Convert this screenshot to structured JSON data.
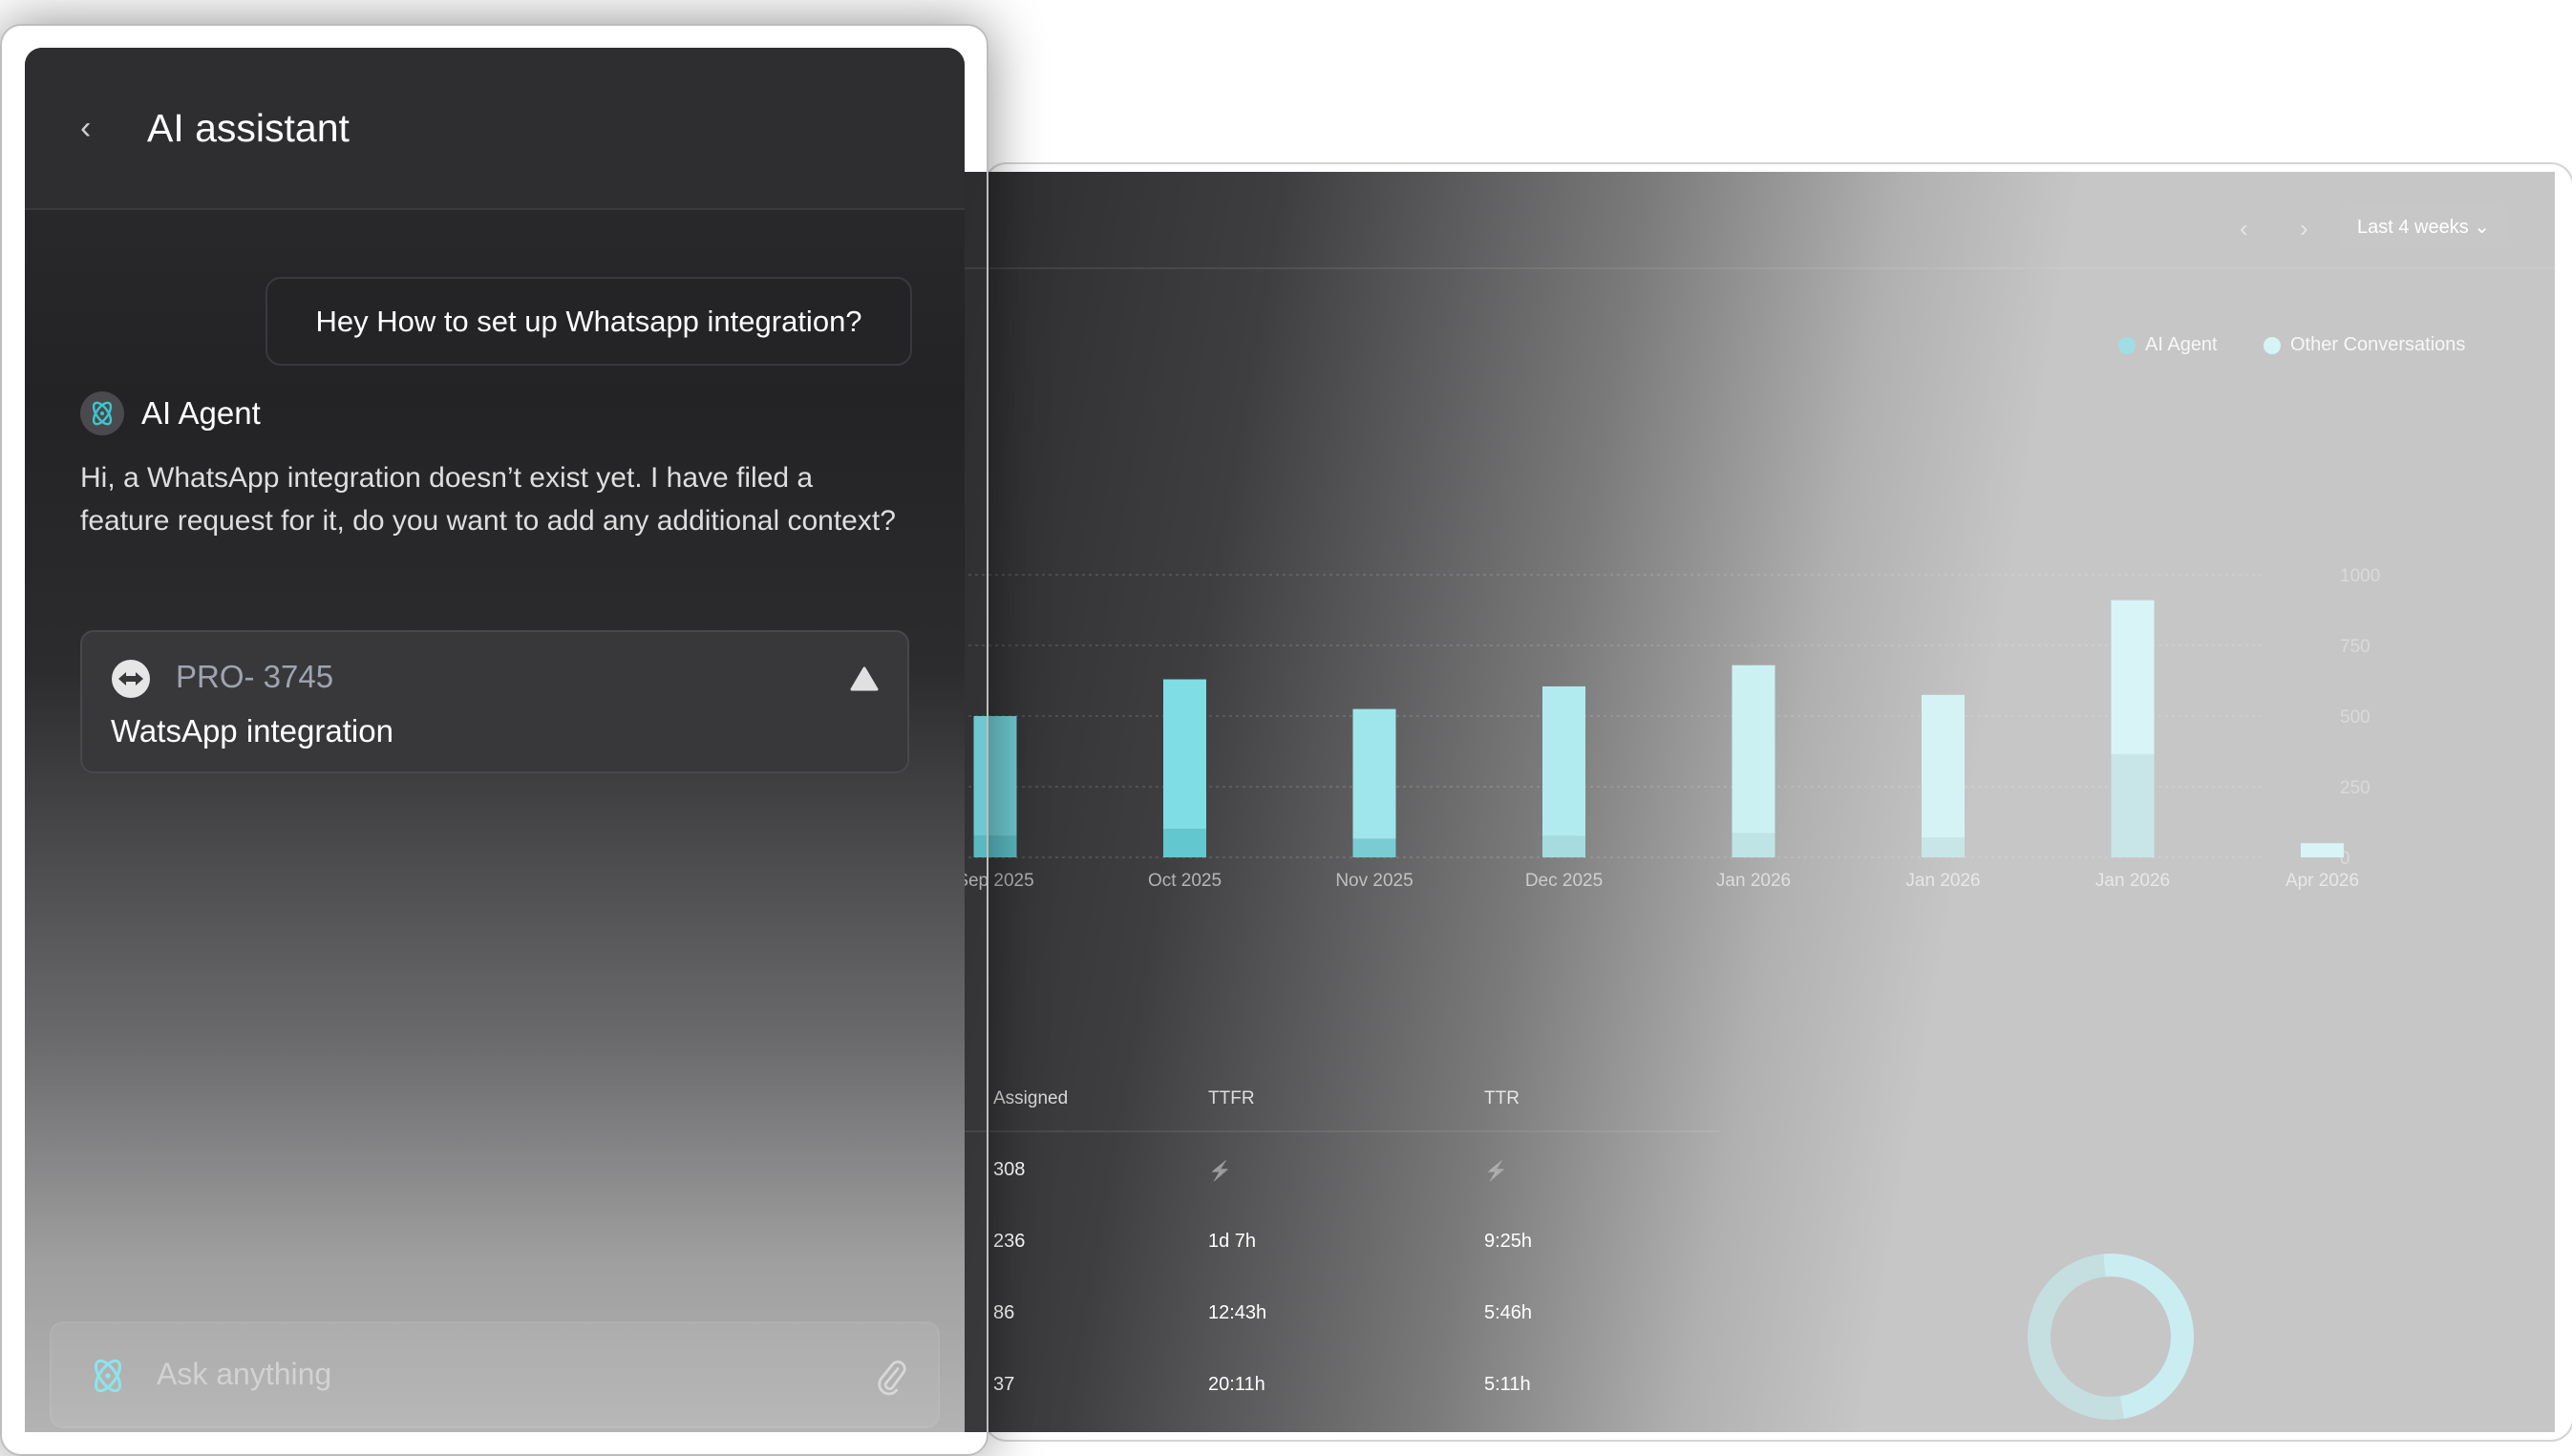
{
  "panel": {
    "title": "AI assistant",
    "back_icon": "chevron-left-icon"
  },
  "chat": {
    "user_message": "Hey How to set up Whatsapp integration?",
    "agent_name": "AI Agent",
    "agent_message": "Hi, a WhatsApp integration doesn’t exist yet. I have filed a feature request for it, do you want to add any additional context?",
    "ticket": {
      "id": "PRO- 3745",
      "title": "WatsApp integration",
      "priority_icon": "triangle-up-icon"
    }
  },
  "input": {
    "placeholder": "Ask anything",
    "attach_icon": "paperclip-icon"
  },
  "dashboard": {
    "range_label": "Last 4 weeks",
    "table": {
      "headers": [
        "Assigned",
        "TTFR",
        "TTR"
      ],
      "rows": [
        [
          "308",
          "⚡",
          "⚡"
        ],
        [
          "236",
          "1d 7h",
          "9:25h"
        ],
        [
          "86",
          "12:43h",
          "5:46h"
        ],
        [
          "37",
          "20:11h",
          "5:11h"
        ]
      ]
    }
  },
  "colors": {
    "accent": "#7fdde6",
    "ai_agent": "#5cc0c8",
    "other": "#8fe3ea"
  },
  "chart_data": {
    "type": "bar",
    "stacked": true,
    "categories": [
      "Sep 2025",
      "Oct 2025",
      "Nov 2025",
      "Dec 2025",
      "Jan 2026",
      "Jan 2026",
      "Jan 2026",
      "Apr 2026"
    ],
    "series": [
      {
        "name": "AI Agent",
        "values": [
          75,
          100,
          65,
          75,
          85,
          70,
          365,
          0
        ]
      },
      {
        "name": "Other Conversations",
        "values": [
          425,
          530,
          460,
          530,
          595,
          505,
          545,
          50
        ]
      }
    ],
    "yticks": [
      0,
      250,
      500,
      750,
      1000
    ],
    "ylim": [
      0,
      1000
    ],
    "grid": true,
    "legend": "top-right"
  }
}
